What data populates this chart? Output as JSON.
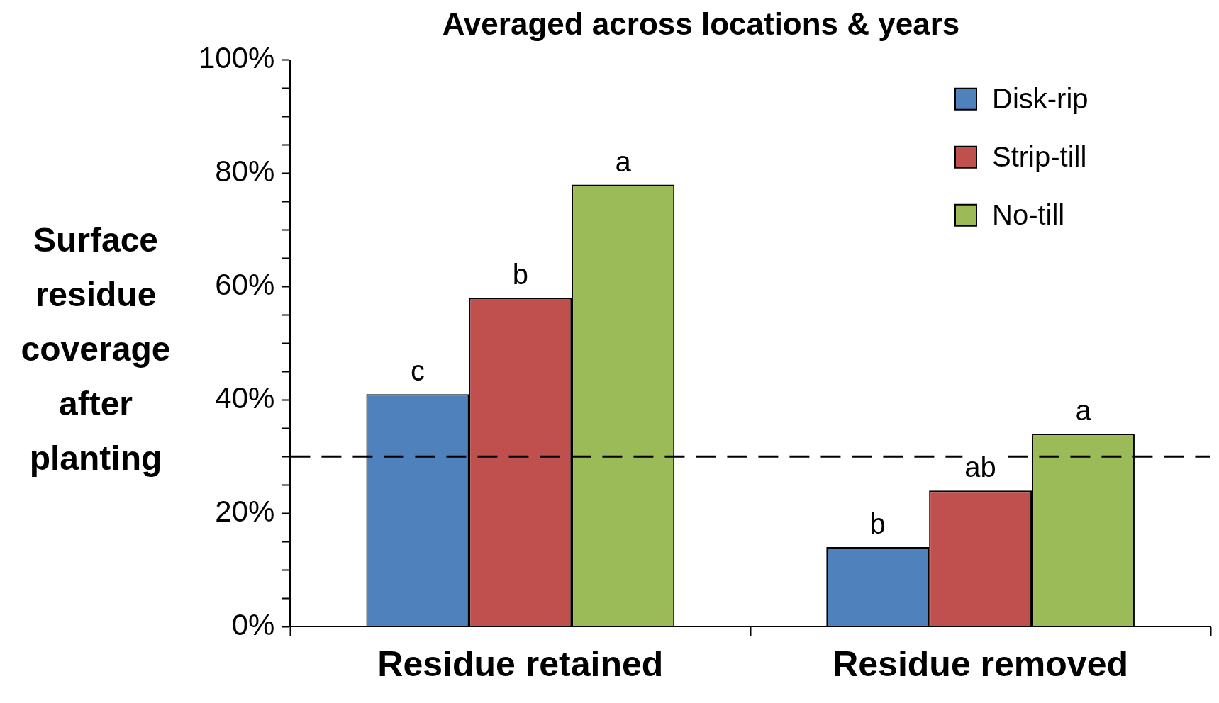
{
  "chart_data": {
    "type": "bar",
    "title": "Averaged across locations & years",
    "ylabel": "Surface residue coverage after planting",
    "categories": [
      "Residue retained",
      "Residue removed"
    ],
    "series": [
      {
        "name": "Disk-rip",
        "color": "#4f81bd",
        "values": [
          41,
          14
        ],
        "value_labels": [
          "c",
          "b"
        ]
      },
      {
        "name": "Strip-till",
        "color": "#c0504d",
        "values": [
          58,
          24
        ],
        "value_labels": [
          "b",
          "ab"
        ]
      },
      {
        "name": "No-till",
        "color": "#9bbb59",
        "values": [
          78,
          34
        ],
        "value_labels": [
          "a",
          "a"
        ]
      }
    ],
    "ylim": [
      0,
      100
    ],
    "yticks": [
      {
        "value": 0,
        "label": "0%"
      },
      {
        "value": 5,
        "label": null
      },
      {
        "value": 10,
        "label": null
      },
      {
        "value": 15,
        "label": null
      },
      {
        "value": 20,
        "label": "20%"
      },
      {
        "value": 25,
        "label": null
      },
      {
        "value": 30,
        "label": null
      },
      {
        "value": 35,
        "label": null
      },
      {
        "value": 40,
        "label": "40%"
      },
      {
        "value": 45,
        "label": null
      },
      {
        "value": 50,
        "label": null
      },
      {
        "value": 55,
        "label": null
      },
      {
        "value": 60,
        "label": "60%"
      },
      {
        "value": 65,
        "label": null
      },
      {
        "value": 70,
        "label": null
      },
      {
        "value": 75,
        "label": null
      },
      {
        "value": 80,
        "label": "80%"
      },
      {
        "value": 85,
        "label": null
      },
      {
        "value": 90,
        "label": null
      },
      {
        "value": 95,
        "label": null
      },
      {
        "value": 100,
        "label": "100%"
      }
    ],
    "ref_lines": [
      {
        "axis": "y",
        "value": 30,
        "label": null,
        "color": "#000000",
        "line_style": "dashed"
      }
    ],
    "grid": false,
    "legend": "top right"
  }
}
